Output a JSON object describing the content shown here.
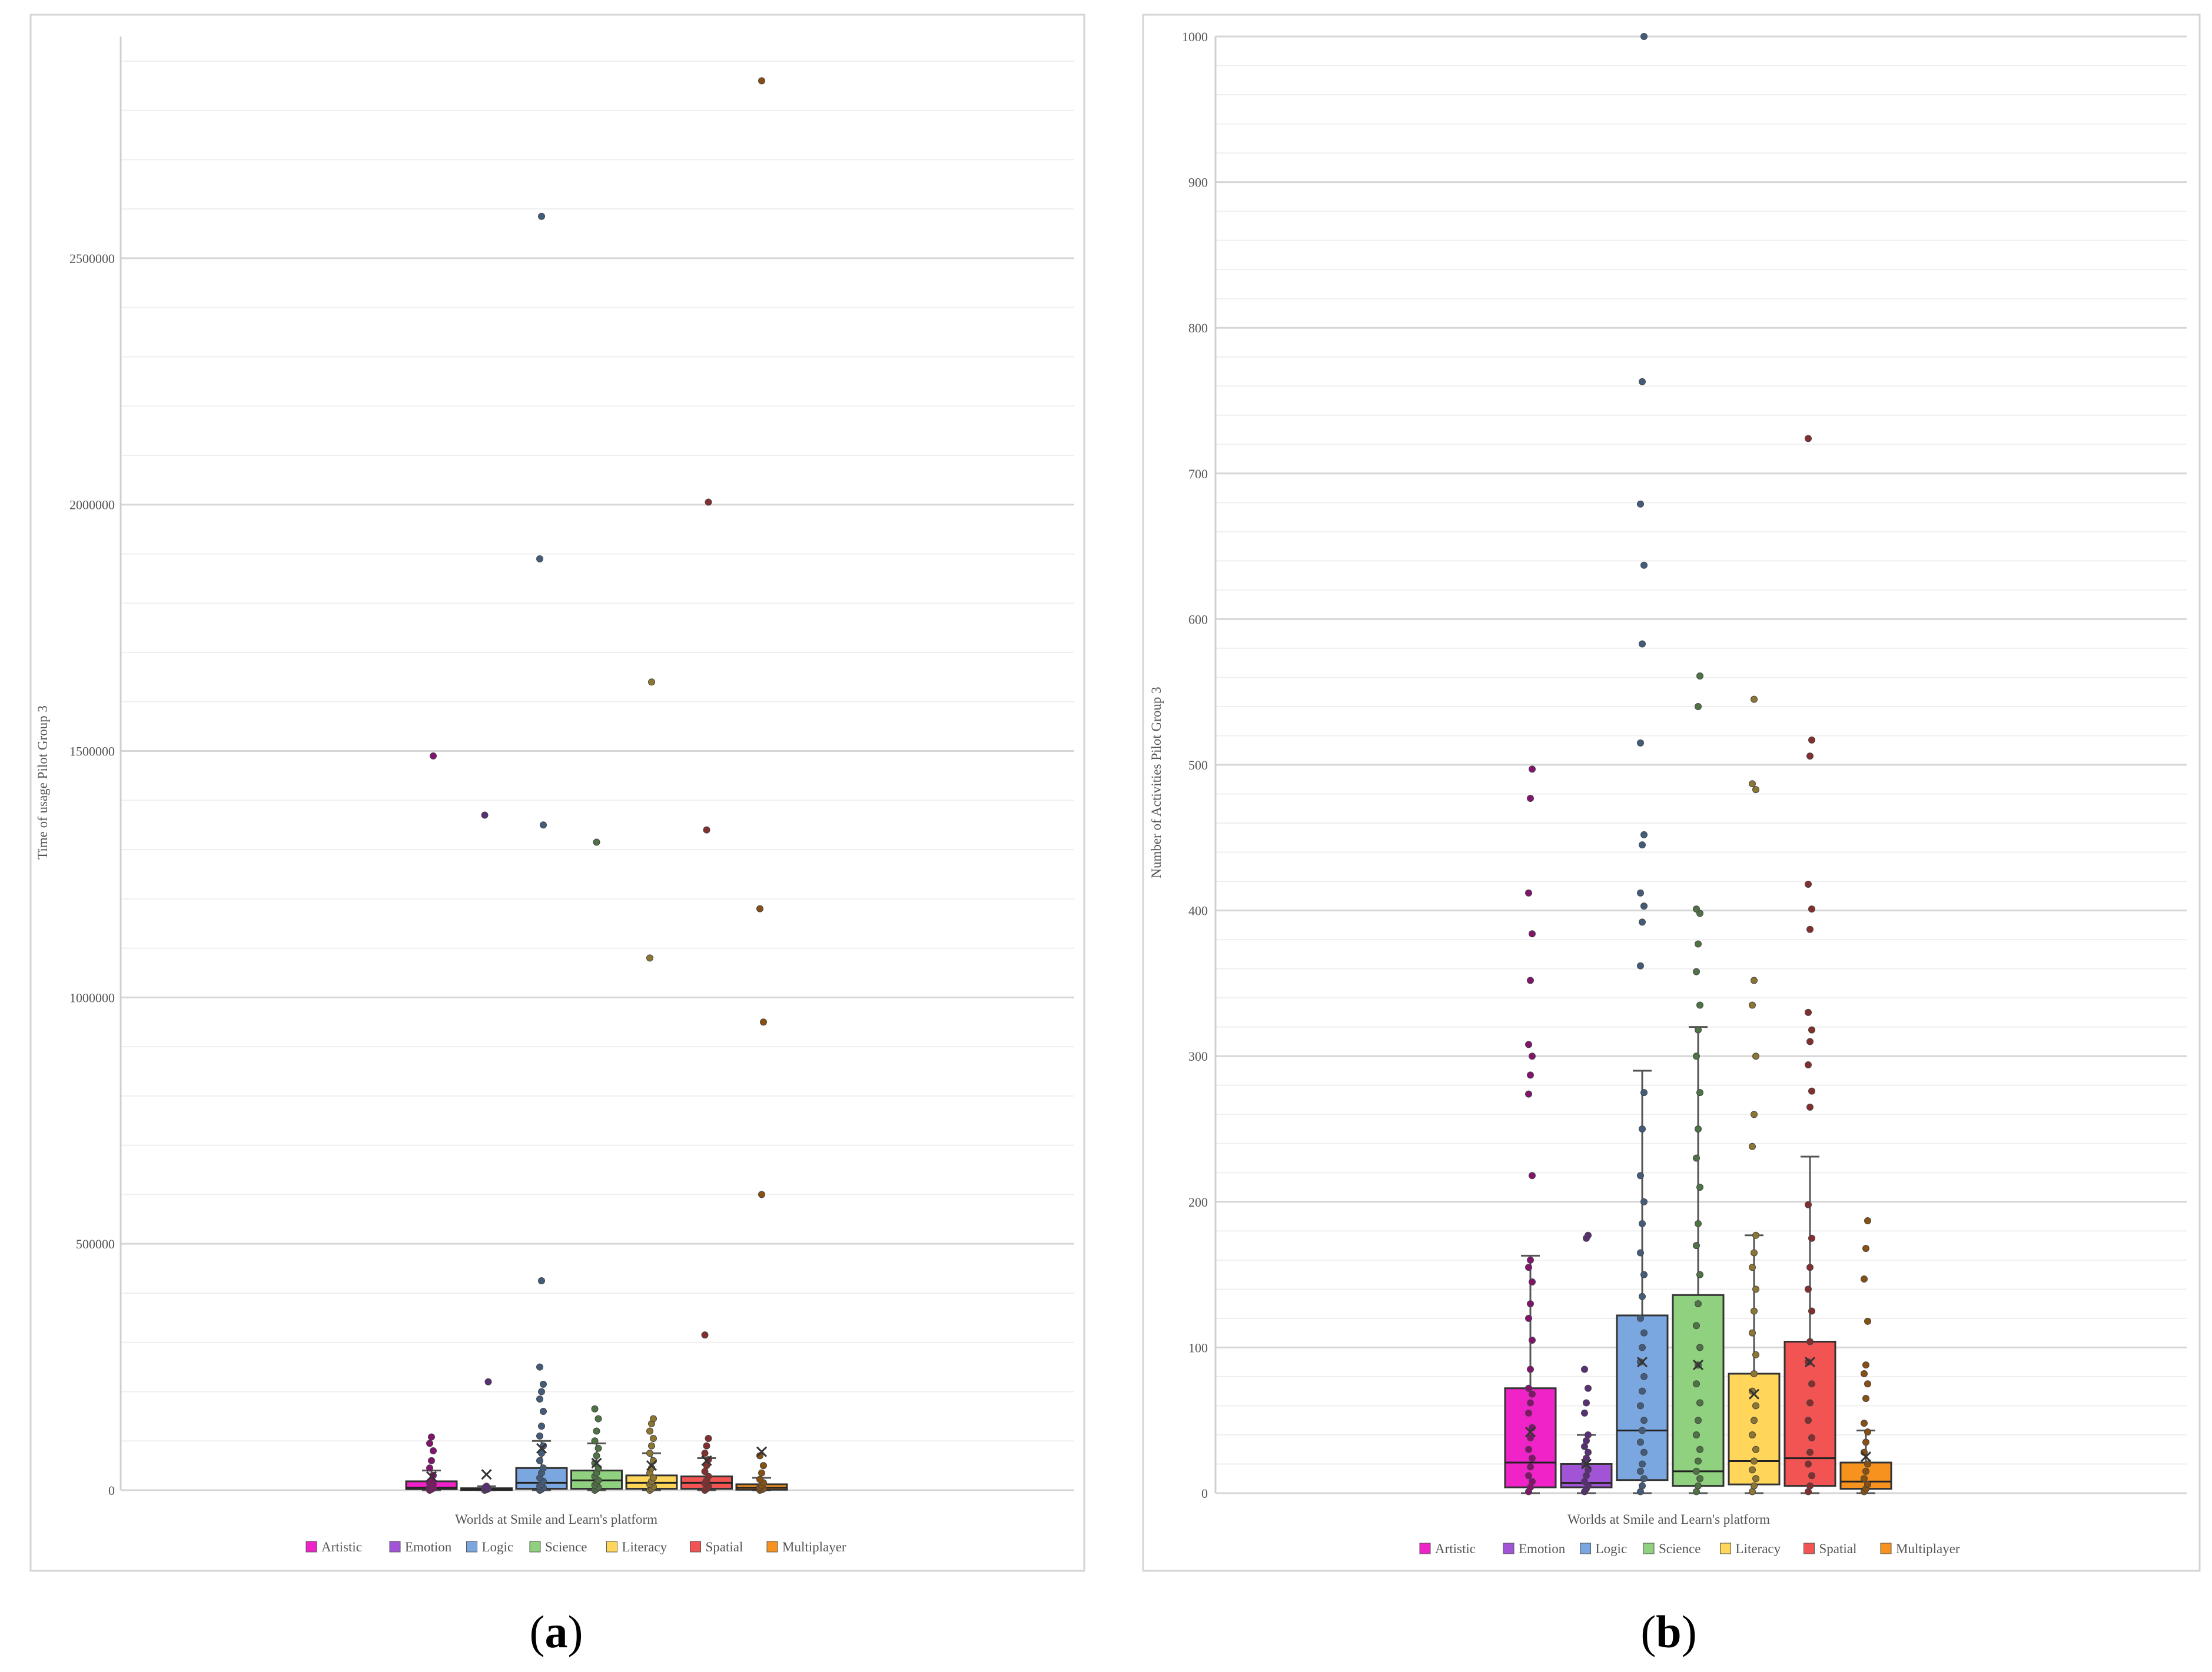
{
  "chart_data": [
    {
      "type": "box",
      "panel_label": "a",
      "title": "",
      "xlabel": "Worlds at Smile and Learn's platform",
      "ylabel": "Time of usage Pilot Group 3",
      "ylim": [
        0,
        2950000
      ],
      "yticks": [
        0,
        500000,
        1000000,
        1500000,
        2000000,
        2500000
      ],
      "grid": true,
      "legend_position": "bottom",
      "categories": [
        "Artistic",
        "Emotion",
        "Logic",
        "Science",
        "Literacy",
        "Spatial",
        "Multiplayer"
      ],
      "colors": [
        "#f023c8",
        "#a155d6",
        "#7ba7e0",
        "#8fd17e",
        "#ffd659",
        "#f25454",
        "#f7921e"
      ],
      "boxes": [
        {
          "name": "Artistic",
          "q1": 2000,
          "median": 5000,
          "q3": 18000,
          "whisker_low": 0,
          "whisker_high": 40000,
          "mean": 28000,
          "points": [
            0,
            2000,
            4000,
            6000,
            9000,
            12000,
            15000,
            20000,
            30000,
            45000,
            60000,
            80000,
            95000,
            108000,
            1490000
          ]
        },
        {
          "name": "Emotion",
          "q1": 1000,
          "median": 2000,
          "q3": 4000,
          "whisker_low": 0,
          "whisker_high": 8000,
          "mean": 32000,
          "points": [
            0,
            1000,
            3000,
            5000,
            8000,
            220000,
            1370000
          ]
        },
        {
          "name": "Logic",
          "q1": 3000,
          "median": 15000,
          "q3": 45000,
          "whisker_low": 0,
          "whisker_high": 100000,
          "mean": 85000,
          "points": [
            0,
            2000,
            5000,
            8000,
            12000,
            18000,
            25000,
            35000,
            45000,
            60000,
            75000,
            90000,
            110000,
            130000,
            160000,
            185000,
            200000,
            215000,
            250000,
            425000,
            1350000,
            1890000,
            2585000
          ]
        },
        {
          "name": "Science",
          "q1": 3000,
          "median": 20000,
          "q3": 40000,
          "whisker_low": 0,
          "whisker_high": 95000,
          "mean": 55000,
          "points": [
            0,
            3000,
            6000,
            10000,
            15000,
            20000,
            28000,
            35000,
            45000,
            55000,
            70000,
            85000,
            100000,
            120000,
            145000,
            165000,
            1315000
          ]
        },
        {
          "name": "Literacy",
          "q1": 3000,
          "median": 15000,
          "q3": 30000,
          "whisker_low": 0,
          "whisker_high": 75000,
          "mean": 50000,
          "points": [
            0,
            3000,
            7000,
            12000,
            18000,
            25000,
            35000,
            45000,
            60000,
            75000,
            90000,
            105000,
            120000,
            135000,
            145000,
            1080000,
            1640000
          ]
        },
        {
          "name": "Spatial",
          "q1": 3000,
          "median": 15000,
          "q3": 28000,
          "whisker_low": 0,
          "whisker_high": 65000,
          "mean": 60000,
          "points": [
            0,
            3000,
            8000,
            14000,
            20000,
            28000,
            38000,
            50000,
            62000,
            75000,
            90000,
            105000,
            315000,
            1340000,
            2005000
          ]
        },
        {
          "name": "Multiplayer",
          "q1": 1000,
          "median": 5000,
          "q3": 12000,
          "whisker_low": 0,
          "whisker_high": 25000,
          "mean": 78000,
          "points": [
            0,
            1000,
            3000,
            6000,
            10000,
            15000,
            22000,
            35000,
            50000,
            70000,
            600000,
            950000,
            1180000,
            2860000
          ]
        }
      ]
    },
    {
      "type": "box",
      "panel_label": "b",
      "title": "",
      "xlabel": "Worlds at Smile and Learn's platform",
      "ylabel": "Number of Activities Pilot Group 3",
      "ylim": [
        0,
        1000
      ],
      "yticks": [
        0,
        100,
        200,
        300,
        400,
        500,
        600,
        700,
        800,
        900,
        1000
      ],
      "grid": true,
      "legend_position": "bottom",
      "categories": [
        "Artistic",
        "Emotion",
        "Logic",
        "Science",
        "Literacy",
        "Spatial",
        "Multiplayer"
      ],
      "colors": [
        "#f023c8",
        "#a155d6",
        "#7ba7e0",
        "#8fd17e",
        "#ffd659",
        "#f25454",
        "#f7921e"
      ],
      "boxes": [
        {
          "name": "Artistic",
          "q1": 4,
          "median": 21,
          "q3": 72,
          "whisker_low": 0,
          "whisker_high": 163,
          "mean": 42,
          "points": [
            1,
            4,
            8,
            12,
            18,
            24,
            30,
            38,
            45,
            55,
            62,
            68,
            72,
            85,
            105,
            120,
            130,
            145,
            155,
            160,
            218,
            274,
            287,
            300,
            308,
            352,
            384,
            412,
            477,
            497
          ]
        },
        {
          "name": "Emotion",
          "q1": 4,
          "median": 7,
          "q3": 20,
          "whisker_low": 0,
          "whisker_high": 40,
          "mean": 20,
          "points": [
            1,
            3,
            5,
            8,
            12,
            16,
            20,
            24,
            28,
            32,
            36,
            40,
            55,
            62,
            72,
            85,
            175,
            177
          ]
        },
        {
          "name": "Logic",
          "q1": 9,
          "median": 43,
          "q3": 122,
          "whisker_low": 0,
          "whisker_high": 290,
          "mean": 90,
          "points": [
            1,
            5,
            10,
            15,
            20,
            28,
            35,
            43,
            50,
            60,
            70,
            80,
            90,
            100,
            110,
            120,
            135,
            150,
            165,
            185,
            200,
            218,
            250,
            275,
            362,
            392,
            403,
            412,
            445,
            452,
            515,
            583,
            637,
            679,
            763,
            1000
          ]
        },
        {
          "name": "Science",
          "q1": 5,
          "median": 15,
          "q3": 136,
          "whisker_low": 0,
          "whisker_high": 320,
          "mean": 88,
          "points": [
            1,
            5,
            10,
            15,
            22,
            30,
            40,
            50,
            62,
            75,
            88,
            100,
            115,
            130,
            150,
            170,
            185,
            210,
            230,
            250,
            275,
            300,
            318,
            335,
            358,
            377,
            398,
            401,
            540,
            561
          ]
        },
        {
          "name": "Literacy",
          "q1": 6,
          "median": 22,
          "q3": 82,
          "whisker_low": 0,
          "whisker_high": 177,
          "mean": 68,
          "points": [
            1,
            5,
            10,
            16,
            22,
            30,
            40,
            50,
            60,
            70,
            82,
            95,
            110,
            125,
            140,
            155,
            165,
            177,
            238,
            260,
            300,
            335,
            352,
            483,
            487,
            545
          ]
        },
        {
          "name": "Spatial",
          "q1": 5,
          "median": 24,
          "q3": 104,
          "whisker_low": 0,
          "whisker_high": 231,
          "mean": 90,
          "points": [
            1,
            5,
            12,
            20,
            28,
            38,
            50,
            62,
            75,
            90,
            104,
            125,
            140,
            155,
            175,
            198,
            265,
            276,
            294,
            310,
            318,
            330,
            387,
            401,
            418,
            506,
            517,
            724
          ]
        },
        {
          "name": "Multiplayer",
          "q1": 3,
          "median": 8,
          "q3": 21,
          "whisker_low": 0,
          "whisker_high": 43,
          "mean": 25,
          "points": [
            1,
            3,
            6,
            10,
            15,
            20,
            28,
            35,
            42,
            48,
            65,
            75,
            82,
            88,
            118,
            147,
            168,
            187
          ]
        }
      ]
    }
  ],
  "legend_title": "",
  "captions": {
    "a": "a",
    "b": "b"
  }
}
